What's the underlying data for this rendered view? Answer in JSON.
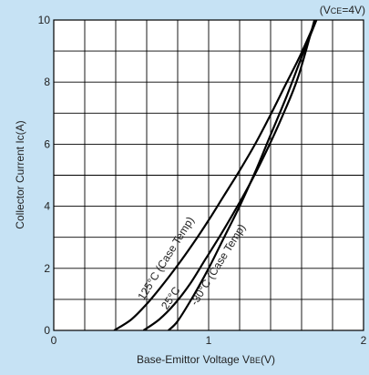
{
  "chart_data": {
    "type": "line",
    "condition_label": "(VCE=4V)",
    "condition": {
      "prefix": "(V",
      "sub": "CE",
      "suffix": "=4V)"
    },
    "xlabel": {
      "main": "Base-Emittor Voltage  V",
      "sub": "BE",
      "suffix": "(V)"
    },
    "ylabel": "Collector Current Ic(A)",
    "xlim": [
      0,
      2
    ],
    "ylim": [
      0,
      10
    ],
    "x_ticks": [
      "0",
      "1",
      "2"
    ],
    "y_ticks": [
      "0",
      "2",
      "4",
      "6",
      "8",
      "10"
    ],
    "grid": true,
    "series": [
      {
        "name": "125°C (Case Temp)",
        "x": [
          0.39,
          0.5,
          0.6,
          0.7,
          0.8,
          0.9,
          1.0,
          1.1,
          1.2,
          1.3,
          1.4,
          1.5,
          1.6,
          1.72
        ],
        "y": [
          0.0,
          0.35,
          0.85,
          1.45,
          2.1,
          2.8,
          3.55,
          4.35,
          5.15,
          6.0,
          6.95,
          7.95,
          8.95,
          10.3
        ]
      },
      {
        "name": "25°C",
        "x": [
          0.58,
          0.68,
          0.78,
          0.88,
          0.98,
          1.08,
          1.18,
          1.28,
          1.38,
          1.48,
          1.58,
          1.7
        ],
        "y": [
          0.0,
          0.35,
          0.85,
          1.5,
          2.3,
          3.1,
          3.95,
          4.85,
          5.85,
          6.95,
          8.2,
          10.3
        ]
      },
      {
        "name": "-30°C (Case Temp)",
        "x": [
          0.74,
          0.8,
          0.9,
          1.0,
          1.1,
          1.2,
          1.3,
          1.4,
          1.5,
          1.6,
          1.72
        ],
        "y": [
          0.0,
          0.3,
          1.1,
          2.0,
          3.0,
          4.0,
          5.1,
          6.3,
          7.5,
          8.8,
          10.3
        ]
      }
    ],
    "annotations": [
      {
        "text": "125°C (Case Temp)"
      },
      {
        "text": "25°C"
      },
      {
        "text": "-30°C (Case Temp)"
      }
    ],
    "colors": {
      "background": "#c6e2f4",
      "plot": "#ffffff",
      "grid": "#000000",
      "line": "#000000"
    }
  }
}
